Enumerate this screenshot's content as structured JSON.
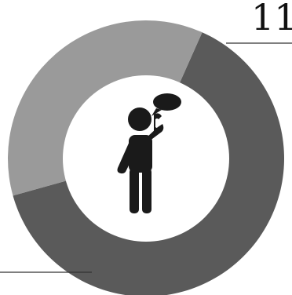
{
  "chart_data": {
    "type": "pie",
    "variant": "donut",
    "title": "",
    "slices": [
      {
        "label": "11",
        "value": 64,
        "color": "#5a5a5a"
      },
      {
        "label": "",
        "value": 36,
        "color": "#9a9a9a"
      }
    ],
    "start_angle_deg": 24,
    "center_icon": "person-on-phone-with-speech-bubble-icon",
    "center_color": "#ffffff",
    "icon_color": "#1a1a1a"
  }
}
